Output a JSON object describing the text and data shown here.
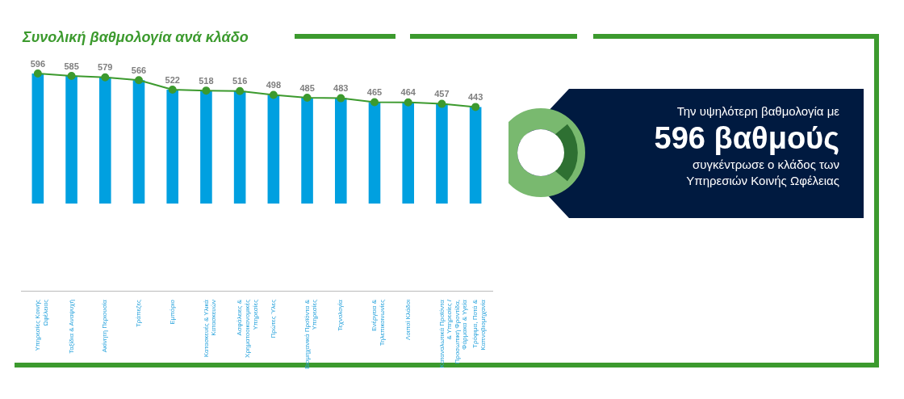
{
  "chart_data": {
    "type": "bar",
    "title": "Συνολική βαθμολογία ανά κλάδο",
    "categories": [
      "Υπηρεσίες Κοινής Ωφέλειας",
      "Ταξίδια & Αναψυχή",
      "Ακίνητη Περιουσία",
      "Τράπεζες",
      "Εμπόριο",
      "Κατασκευές & Υλικά Κατασκευών",
      "Ασφάλειες & Χρηματοοικονομικές Υπηρεσίες",
      "Πρώτες Ύλες",
      "Βιομηχανικά Προϊόντα & Υπηρεσίες",
      "Τεχνολογία",
      "Ενέργεια & Τηλεπικοινωνίες",
      "Λοιποί Κλάδοι",
      "Καταναλωτικά Προϊόντα & Υπηρεσίες / Προσωπική Φροντίδα, Φάρμακα & Υγεία",
      "Τρόφιμα, Ποτά & Καπνοβιομηχανία"
    ],
    "series": [
      {
        "color": "#00a0e0",
        "values": [
          596,
          585,
          579,
          566,
          522,
          518,
          516,
          498,
          485,
          483,
          465,
          464,
          457,
          443
        ],
        "value_labels": [
          null,
          null,
          null,
          null,
          null,
          null,
          null,
          null,
          null,
          null,
          null,
          null,
          null,
          null
        ]
      },
      {
        "type": "line",
        "color": "#3c9a2e",
        "values": [
          596,
          585,
          579,
          566,
          522,
          518,
          516,
          498,
          485,
          483,
          465,
          464,
          457,
          443
        ],
        "value_labels": [
          "596",
          "585",
          "579",
          "566",
          "522",
          "518",
          "516",
          "498",
          "485",
          "483",
          "465",
          "464",
          "457",
          "443"
        ]
      }
    ],
    "marker": "circle",
    "grid": false,
    "legend": false,
    "annotations": [
      "Την υψηλότερη βαθμολογία με",
      "596 βαθμούς",
      "συγκέντρωσε ο κλάδος των",
      "Υπηρεσιών Κοινής Ωφέλειας"
    ]
  }
}
